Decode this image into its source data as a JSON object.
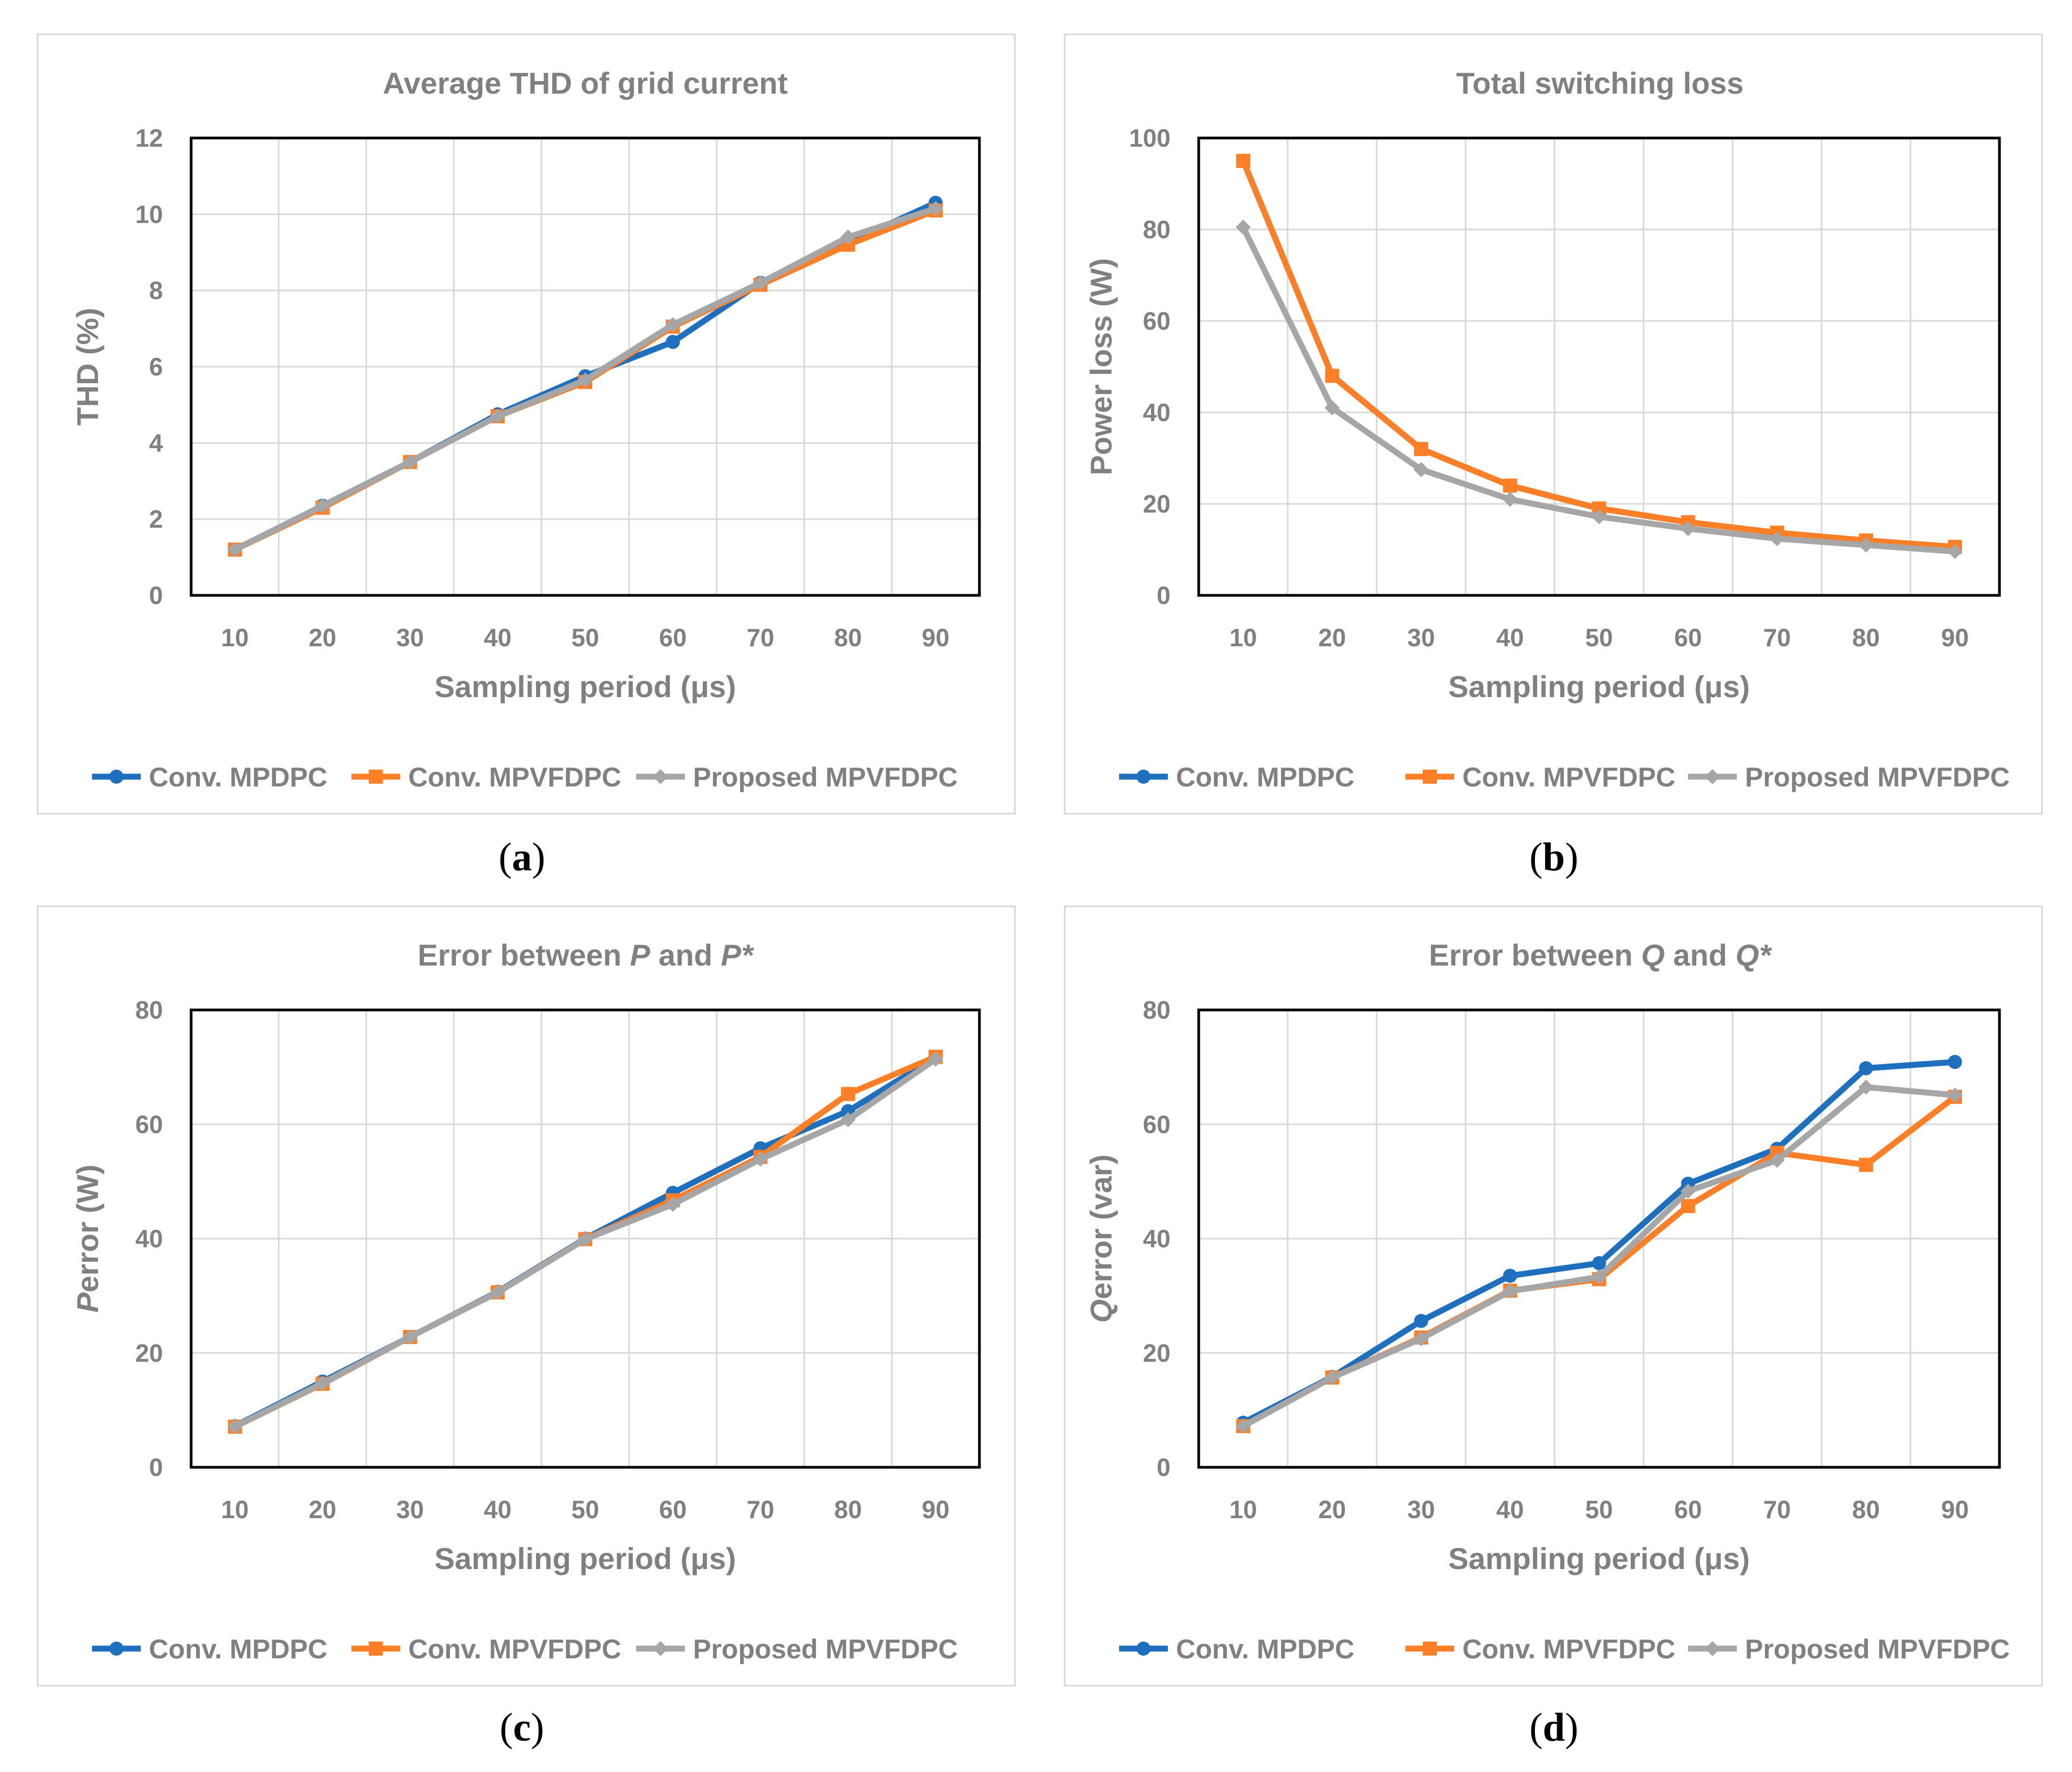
{
  "chart_data": [
    {
      "type": "line",
      "title": "Average THD of grid current",
      "xlabel": "Sampling period (μs)",
      "ylabel": "THD (%)",
      "categories": [
        "10",
        "20",
        "30",
        "40",
        "50",
        "60",
        "70",
        "80",
        "90"
      ],
      "y_ticks": [
        "0",
        "2",
        "4",
        "6",
        "8",
        "10",
        "12"
      ],
      "ylim": [
        0,
        12
      ],
      "grid": true,
      "legend_position": "bottom",
      "caption": "a",
      "series": [
        {
          "name": "Conv. MPDPC",
          "color": "#1f6fbf",
          "marker": "circle",
          "values": [
            1.2,
            2.35,
            3.5,
            4.75,
            5.75,
            6.65,
            8.2,
            9.25,
            10.3
          ]
        },
        {
          "name": "Conv. MPVFDPC",
          "color": "#ff7f27",
          "marker": "square",
          "values": [
            1.2,
            2.3,
            3.5,
            4.7,
            5.6,
            7.05,
            8.15,
            9.2,
            10.1
          ]
        },
        {
          "name": "Proposed MPVFDPC",
          "color": "#a6a6a6",
          "marker": "diamond",
          "values": [
            1.2,
            2.35,
            3.5,
            4.7,
            5.65,
            7.1,
            8.2,
            9.4,
            10.15
          ]
        }
      ]
    },
    {
      "type": "line",
      "title": "Total switching loss",
      "xlabel": "Sampling period (μs)",
      "ylabel": "Power loss (W)",
      "categories": [
        "10",
        "20",
        "30",
        "40",
        "50",
        "60",
        "70",
        "80",
        "90"
      ],
      "y_ticks": [
        "0",
        "20",
        "40",
        "60",
        "80",
        "100"
      ],
      "ylim": [
        0,
        100
      ],
      "grid": true,
      "legend_position": "bottom",
      "caption": "b",
      "series": [
        {
          "name": "Conv. MPDPC",
          "color": "#1f6fbf",
          "marker": "circle",
          "values": [
            95,
            48,
            32,
            24,
            19,
            16,
            13.7,
            12,
            10.6
          ]
        },
        {
          "name": "Conv. MPVFDPC",
          "color": "#ff7f27",
          "marker": "square",
          "values": [
            95,
            48,
            32,
            24,
            19,
            16,
            13.7,
            12,
            10.6
          ]
        },
        {
          "name": "Proposed MPVFDPC",
          "color": "#a6a6a6",
          "marker": "diamond",
          "values": [
            80.5,
            41,
            27.5,
            21,
            17.2,
            14.6,
            12.4,
            11,
            9.6
          ]
        }
      ]
    },
    {
      "type": "line",
      "title_parts": [
        {
          "text": "Error between ",
          "italic": false
        },
        {
          "text": "P",
          "italic": true
        },
        {
          "text": " and ",
          "italic": false
        },
        {
          "text": "P*",
          "italic": true
        }
      ],
      "xlabel": "Sampling period (μs)",
      "ylabel_parts": [
        {
          "text": "P",
          "italic": true
        },
        {
          "text": "error (W)",
          "italic": false
        }
      ],
      "categories": [
        "10",
        "20",
        "30",
        "40",
        "50",
        "60",
        "70",
        "80",
        "90"
      ],
      "y_ticks": [
        "0",
        "20",
        "40",
        "60",
        "80"
      ],
      "ylim": [
        0,
        80
      ],
      "grid": true,
      "legend_position": "bottom",
      "caption": "c",
      "series": [
        {
          "name": "Conv. MPDPC",
          "color": "#1f6fbf",
          "marker": "circle",
          "values": [
            7.2,
            15,
            22.8,
            30.7,
            40,
            48,
            55.8,
            62.3,
            71.7
          ]
        },
        {
          "name": "Conv. MPVFDPC",
          "color": "#ff7f27",
          "marker": "square",
          "values": [
            7.1,
            14.6,
            22.8,
            30.6,
            39.9,
            46.7,
            54.3,
            65.3,
            71.8
          ]
        },
        {
          "name": "Proposed MPVFDPC",
          "color": "#a6a6a6",
          "marker": "diamond",
          "values": [
            7.1,
            14.7,
            22.8,
            30.6,
            39.9,
            46,
            53.9,
            60.8,
            71.4
          ]
        }
      ]
    },
    {
      "type": "line",
      "title_parts": [
        {
          "text": "Error between ",
          "italic": false
        },
        {
          "text": "Q",
          "italic": true
        },
        {
          "text": " and ",
          "italic": false
        },
        {
          "text": "Q*",
          "italic": true
        }
      ],
      "xlabel": "Sampling period (μs)",
      "ylabel_parts": [
        {
          "text": "Q",
          "italic": true
        },
        {
          "text": "error (var)",
          "italic": false
        }
      ],
      "categories": [
        "10",
        "20",
        "30",
        "40",
        "50",
        "60",
        "70",
        "80",
        "90"
      ],
      "y_ticks": [
        "0",
        "20",
        "40",
        "60",
        "80"
      ],
      "ylim": [
        0,
        80
      ],
      "grid": true,
      "legend_position": "bottom",
      "caption": "d",
      "series": [
        {
          "name": "Conv. MPDPC",
          "color": "#1f6fbf",
          "marker": "circle",
          "values": [
            7.8,
            15.8,
            25.6,
            33.5,
            35.7,
            49.6,
            55.7,
            69.8,
            70.9
          ]
        },
        {
          "name": "Conv. MPVFDPC",
          "color": "#ff7f27",
          "marker": "square",
          "values": [
            7.2,
            15.7,
            22.7,
            30.9,
            32.9,
            45.7,
            55,
            52.9,
            64.8
          ]
        },
        {
          "name": "Proposed MPVFDPC",
          "color": "#a6a6a6",
          "marker": "diamond",
          "values": [
            7.2,
            15.7,
            22.5,
            30.8,
            33.3,
            48.3,
            53.7,
            66.5,
            65.1
          ]
        }
      ]
    }
  ]
}
